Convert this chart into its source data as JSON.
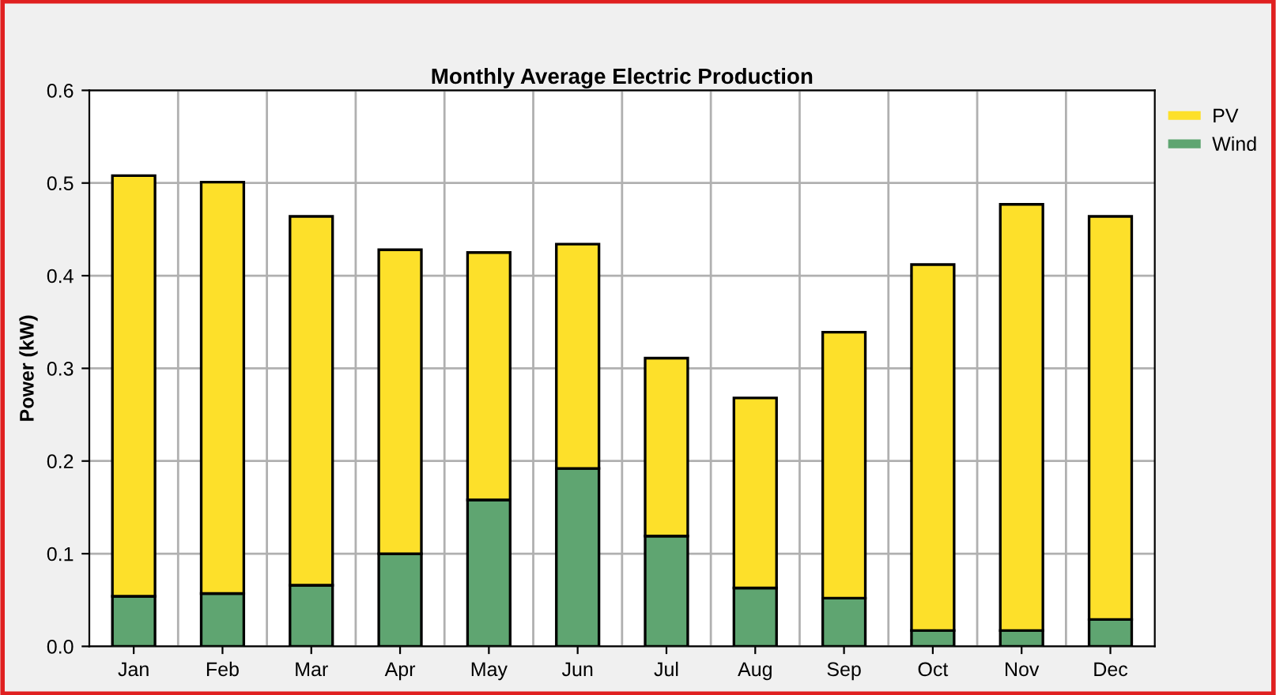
{
  "chart_data": {
    "type": "bar",
    "title": "Monthly Average Electric Production",
    "ylabel": "Power (kW)",
    "stacked": true,
    "categories": [
      "Jan",
      "Feb",
      "Mar",
      "Apr",
      "May",
      "Jun",
      "Jul",
      "Aug",
      "Sep",
      "Oct",
      "Nov",
      "Dec"
    ],
    "series": [
      {
        "name": "Wind",
        "color": "#5fa571",
        "values": [
          0.054,
          0.057,
          0.066,
          0.1,
          0.158,
          0.192,
          0.119,
          0.063,
          0.052,
          0.017,
          0.017,
          0.029
        ]
      },
      {
        "name": "PV",
        "color": "#fde02a",
        "values": [
          0.454,
          0.444,
          0.398,
          0.328,
          0.267,
          0.242,
          0.192,
          0.205,
          0.287,
          0.395,
          0.46,
          0.435
        ]
      }
    ],
    "ylim": [
      0,
      0.6
    ],
    "yticks": [
      {
        "value": 0,
        "label": "0.0"
      },
      0.1,
      0.2,
      0.3,
      0.4,
      0.5,
      0.6
    ],
    "grid": true,
    "legend": "top right"
  }
}
